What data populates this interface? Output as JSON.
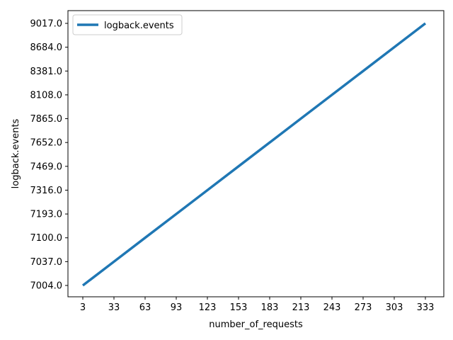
{
  "chart_data": {
    "type": "line",
    "xlabel": "number_of_requests",
    "ylabel": "logback.events",
    "x_ticks": [
      "3",
      "33",
      "63",
      "93",
      "123",
      "153",
      "183",
      "213",
      "243",
      "273",
      "303",
      "333"
    ],
    "y_ticks": [
      "7004.0",
      "7037.0",
      "7100.0",
      "7193.0",
      "7316.0",
      "7469.0",
      "7652.0",
      "7865.0",
      "8108.0",
      "8381.0",
      "8684.0",
      "9017.0"
    ],
    "series": [
      {
        "name": "logback.events",
        "color": "#1f77b4",
        "x": [
          3,
          33,
          63,
          93,
          123,
          153,
          183,
          213,
          243,
          273,
          303,
          333
        ],
        "y": [
          7004.0,
          7037.0,
          7100.0,
          7193.0,
          7316.0,
          7469.0,
          7652.0,
          7865.0,
          8108.0,
          8381.0,
          8684.0,
          9017.0
        ]
      }
    ],
    "y_scale": "categorical (ticks evenly spaced)",
    "grid": false,
    "legend_position": "upper-left"
  }
}
